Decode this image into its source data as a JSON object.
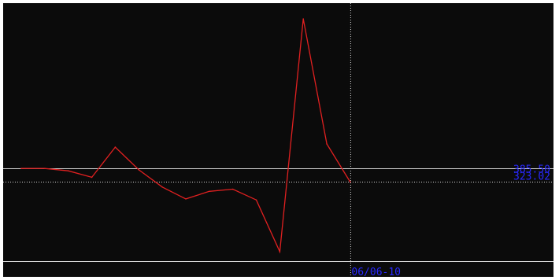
{
  "chart_data": {
    "type": "line",
    "series_color": "#e02020",
    "label_color": "#2828ff",
    "background": "#0b0b0b",
    "crosshair": {
      "value": 323.02,
      "value_label": "323.02",
      "date_label": "06/06-10"
    },
    "reference": {
      "value": 385.5,
      "value_label": "385.50"
    },
    "values": [
      386,
      386,
      375,
      345,
      485,
      380,
      300,
      245,
      280,
      290,
      240,
      0,
      1080,
      500,
      323.02
    ],
    "ylim": [
      0,
      1080
    ],
    "grid": false
  }
}
